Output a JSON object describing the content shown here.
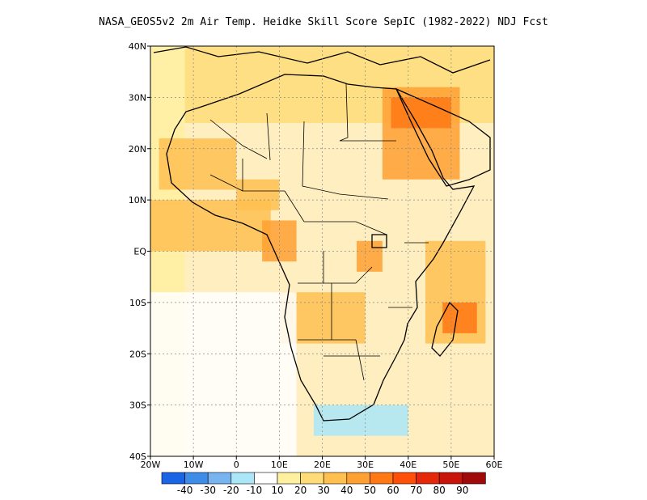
{
  "title": "NASA_GEOS5v2  2m Air Temp. Heidke Skill Score SepIC (1982-2022) NDJ Fcst",
  "map": {
    "lon_range": [
      -20,
      60
    ],
    "lat_range": [
      -40,
      40
    ],
    "lat_ticks": [
      {
        "value": 40,
        "label": "40N"
      },
      {
        "value": 30,
        "label": "30N"
      },
      {
        "value": 20,
        "label": "20N"
      },
      {
        "value": 10,
        "label": "10N"
      },
      {
        "value": 0,
        "label": "EQ"
      },
      {
        "value": -10,
        "label": "10S"
      },
      {
        "value": -20,
        "label": "20S"
      },
      {
        "value": -30,
        "label": "30S"
      },
      {
        "value": -40,
        "label": "40S"
      }
    ],
    "lon_ticks": [
      {
        "value": -20,
        "label": "20W"
      },
      {
        "value": -10,
        "label": "10W"
      },
      {
        "value": 0,
        "label": "0"
      },
      {
        "value": 10,
        "label": "10E"
      },
      {
        "value": 20,
        "label": "20E"
      },
      {
        "value": 30,
        "label": "30E"
      },
      {
        "value": 40,
        "label": "40E"
      },
      {
        "value": 50,
        "label": "50E"
      },
      {
        "value": 60,
        "label": "60E"
      }
    ],
    "grid": true
  },
  "colorbar": {
    "colors": [
      "#1a64e6",
      "#3c8ce8",
      "#78b4f0",
      "#aae6f8",
      "#ffffff",
      "#fff0a0",
      "#ffdc78",
      "#ffc050",
      "#ffa032",
      "#ff7814",
      "#ff500a",
      "#e6280a",
      "#c8140a",
      "#a00a0a"
    ],
    "labels": [
      "-40",
      "-30",
      "-20",
      "-10",
      "10",
      "20",
      "30",
      "40",
      "50",
      "60",
      "70",
      "80",
      "90"
    ]
  },
  "shading_levels": {
    "bands": [
      {
        "lon": [
          -20,
          -12
        ],
        "lat": [
          -40,
          40
        ],
        "level": 5
      },
      {
        "lon": [
          -12,
          60
        ],
        "lat": [
          25,
          40
        ],
        "level": 6
      },
      {
        "lon": [
          -20,
          8
        ],
        "lat": [
          0,
          10
        ],
        "level": 7
      },
      {
        "lon": [
          -18,
          0
        ],
        "lat": [
          12,
          22
        ],
        "level": 7
      },
      {
        "lon": [
          0,
          10
        ],
        "lat": [
          8,
          14
        ],
        "level": 7
      },
      {
        "lon": [
          6,
          14
        ],
        "lat": [
          -2,
          6
        ],
        "level": 8
      },
      {
        "lon": [
          34,
          52
        ],
        "lat": [
          14,
          32
        ],
        "level": 8
      },
      {
        "lon": [
          36,
          50
        ],
        "lat": [
          24,
          30
        ],
        "level": 9
      },
      {
        "lon": [
          44,
          58
        ],
        "lat": [
          -18,
          2
        ],
        "level": 7
      },
      {
        "lon": [
          48,
          56
        ],
        "lat": [
          -16,
          -10
        ],
        "level": 9
      },
      {
        "lon": [
          10,
          30
        ],
        "lat": [
          -18,
          -8
        ],
        "level": 7
      },
      {
        "lon": [
          28,
          34
        ],
        "lat": [
          -4,
          2
        ],
        "level": 8
      },
      {
        "lon": [
          -20,
          14
        ],
        "lat": [
          -40,
          -8
        ],
        "level": 4
      },
      {
        "lon": [
          18,
          40
        ],
        "lat": [
          -36,
          -30
        ],
        "level": 3
      }
    ]
  }
}
